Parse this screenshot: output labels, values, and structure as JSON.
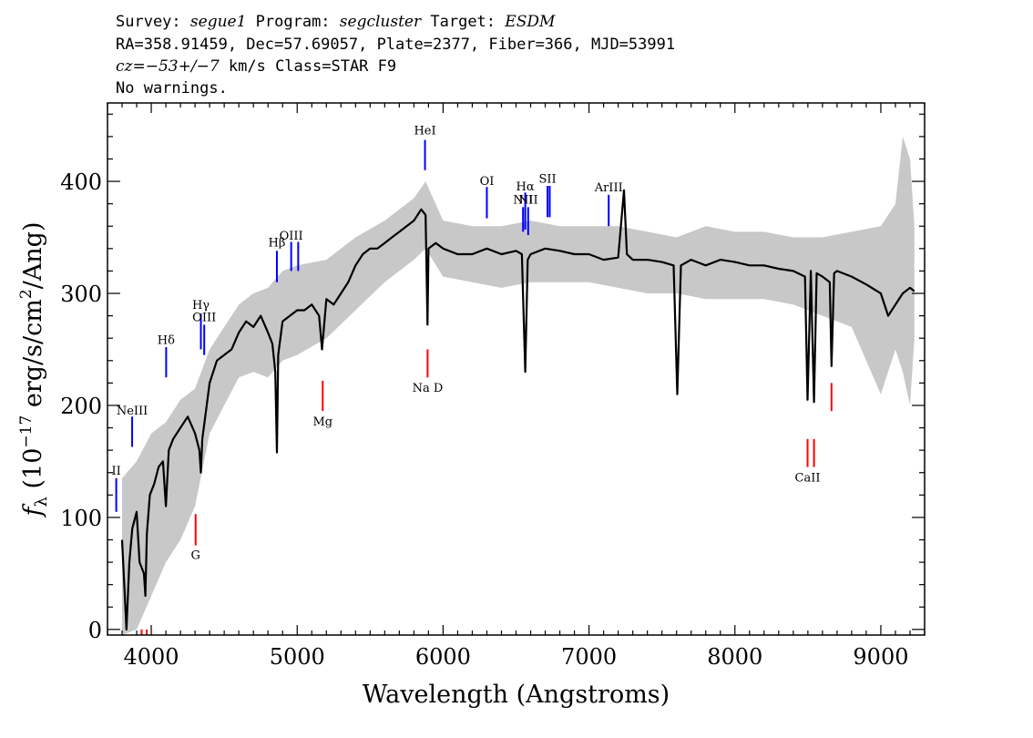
{
  "header": {
    "line1": {
      "survey_label": "Survey:",
      "survey": "segue1",
      "program_label": "Program:",
      "program": "segcluster",
      "target_label": "Target:",
      "target": "ESDM"
    },
    "line2": "RA=358.91459, Dec=57.69057, Plate=2377, Fiber=366, MJD=53991",
    "line3": {
      "cz_label": "cz=",
      "cz_value": "−53+/−7",
      "rest": " km/s Class=STAR F9"
    },
    "line4": "No warnings."
  },
  "colors": {
    "flux": "#000000",
    "error": "#c8c8c8",
    "emission": "#0000ff",
    "absorption": "#ff0000",
    "axes": "#000000"
  },
  "chart_data": {
    "type": "line",
    "title": "",
    "xlabel": "Wavelength (Angstroms)",
    "ylabel": "fλ (10⁻¹⁷ erg/s/cm²/Ang)",
    "ylabel_parts": {
      "f": "f",
      "sub": "λ",
      "open": " (10",
      "exp1": "−17",
      "mid": " erg/s/cm",
      "exp2": "2",
      "close": "/Ang)"
    },
    "xlim": [
      3700,
      9300
    ],
    "ylim": [
      -5,
      470
    ],
    "x_ticks": [
      4000,
      5000,
      6000,
      7000,
      8000,
      9000
    ],
    "x_tick_labels": [
      "4000",
      "5000",
      "6000",
      "7000",
      "8000",
      "9000"
    ],
    "y_ticks": [
      0,
      100,
      200,
      300,
      400
    ],
    "y_tick_labels": [
      "0",
      "100",
      "200",
      "300",
      "400"
    ],
    "grid": false,
    "series": [
      {
        "name": "flux",
        "x": [
          3800,
          3830,
          3850,
          3870,
          3900,
          3920,
          3950,
          3960,
          3970,
          3990,
          4020,
          4050,
          4080,
          4100,
          4120,
          4150,
          4200,
          4250,
          4300,
          4330,
          4340,
          4350,
          4400,
          4450,
          4500,
          4550,
          4600,
          4650,
          4700,
          4750,
          4800,
          4830,
          4850,
          4861,
          4870,
          4900,
          4950,
          5000,
          5050,
          5100,
          5150,
          5170,
          5200,
          5250,
          5300,
          5350,
          5400,
          5450,
          5500,
          5550,
          5600,
          5650,
          5700,
          5750,
          5800,
          5850,
          5880,
          5893,
          5900,
          5950,
          6000,
          6100,
          6200,
          6300,
          6400,
          6500,
          6540,
          6563,
          6580,
          6600,
          6700,
          6800,
          6900,
          7000,
          7100,
          7200,
          7240,
          7260,
          7300,
          7400,
          7500,
          7580,
          7605,
          7630,
          7700,
          7800,
          7900,
          8000,
          8100,
          8200,
          8300,
          8400,
          8480,
          8498,
          8520,
          8542,
          8560,
          8600,
          8650,
          8662,
          8680,
          8700,
          8800,
          8900,
          9000,
          9050,
          9100,
          9150,
          9200,
          9230
        ],
        "values": [
          80,
          0,
          60,
          90,
          105,
          60,
          50,
          30,
          85,
          120,
          130,
          145,
          150,
          110,
          160,
          170,
          180,
          190,
          175,
          160,
          140,
          170,
          220,
          240,
          245,
          250,
          265,
          275,
          270,
          280,
          265,
          255,
          230,
          158,
          245,
          275,
          280,
          285,
          285,
          290,
          280,
          250,
          295,
          290,
          300,
          310,
          325,
          335,
          340,
          340,
          345,
          350,
          355,
          360,
          365,
          375,
          370,
          272,
          340,
          345,
          340,
          335,
          335,
          340,
          335,
          338,
          335,
          230,
          330,
          335,
          340,
          338,
          335,
          335,
          330,
          332,
          392,
          335,
          330,
          330,
          328,
          325,
          210,
          325,
          330,
          325,
          330,
          328,
          325,
          325,
          322,
          320,
          315,
          205,
          320,
          203,
          318,
          315,
          310,
          235,
          318,
          320,
          315,
          308,
          300,
          280,
          290,
          300,
          305,
          302
        ]
      },
      {
        "name": "error-upper",
        "x": [
          3800,
          3900,
          4000,
          4100,
          4200,
          4300,
          4400,
          4500,
          4600,
          4700,
          4800,
          4900,
          5000,
          5200,
          5400,
          5600,
          5800,
          5880,
          6000,
          6200,
          6400,
          6600,
          6800,
          7000,
          7200,
          7400,
          7600,
          7800,
          8000,
          8200,
          8400,
          8600,
          8800,
          9000,
          9100,
          9150,
          9200,
          9230
        ],
        "values": [
          135,
          150,
          175,
          185,
          205,
          215,
          250,
          270,
          290,
          300,
          305,
          320,
          325,
          330,
          350,
          365,
          385,
          400,
          365,
          360,
          360,
          365,
          360,
          360,
          360,
          355,
          350,
          360,
          355,
          355,
          350,
          350,
          355,
          360,
          380,
          440,
          420,
          360
        ]
      },
      {
        "name": "error-lower",
        "x": [
          3800,
          3900,
          4000,
          4100,
          4200,
          4300,
          4400,
          4500,
          4600,
          4700,
          4800,
          4900,
          5000,
          5200,
          5400,
          5600,
          5800,
          5880,
          6000,
          6200,
          6400,
          6600,
          6800,
          7000,
          7200,
          7400,
          7600,
          7800,
          8000,
          8200,
          8400,
          8600,
          8800,
          9000,
          9100,
          9150,
          9200,
          9230
        ],
        "values": [
          -5,
          0,
          30,
          60,
          80,
          110,
          175,
          200,
          225,
          230,
          225,
          240,
          245,
          260,
          285,
          310,
          330,
          340,
          315,
          310,
          305,
          310,
          310,
          310,
          305,
          300,
          300,
          295,
          295,
          295,
          290,
          280,
          270,
          210,
          250,
          230,
          200,
          260
        ]
      }
    ],
    "emission_lines": [
      {
        "name": "HeII",
        "display": "II",
        "x": 3760,
        "y_bottom": 105,
        "y_top": 135,
        "label_y": 138
      },
      {
        "name": "NeIII",
        "display": "NeIII",
        "x": 3869,
        "y_bottom": 163,
        "y_top": 190,
        "label_y": 192
      },
      {
        "name": "Hδ",
        "display": "Hδ",
        "x": 4102,
        "y_bottom": 225,
        "y_top": 252,
        "label_y": 255
      },
      {
        "name": "Hγ",
        "display": "Hγ",
        "x": 4340,
        "y_bottom": 250,
        "y_top": 282,
        "label_y": 286
      },
      {
        "name": "OIII",
        "display": "OIII",
        "x": 4363,
        "y_bottom": 245,
        "y_top": 272,
        "label_y": 275
      },
      {
        "name": "Hβ",
        "display": "Hβ",
        "x": 4861,
        "y_bottom": 310,
        "y_top": 338,
        "label_y": 342
      },
      {
        "name": "OIII",
        "display": "OIII",
        "x": 4959,
        "y_bottom": 320,
        "y_top": 346,
        "label_y": 348
      },
      {
        "name": "OIII",
        "display": "",
        "x": 5007,
        "y_bottom": 320,
        "y_top": 346,
        "label_y": 348
      },
      {
        "name": "HeI",
        "display": "HeI",
        "x": 5876,
        "y_bottom": 410,
        "y_top": 437,
        "label_y": 442
      },
      {
        "name": "OI",
        "display": "OI",
        "x": 6300,
        "y_bottom": 367,
        "y_top": 395,
        "label_y": 397
      },
      {
        "name": "NII",
        "display": "NII",
        "x": 6548,
        "y_bottom": 355,
        "y_top": 377,
        "label_y": 380
      },
      {
        "name": "Hα",
        "display": "Hα",
        "x": 6563,
        "y_bottom": 357,
        "y_top": 390,
        "label_y": 392
      },
      {
        "name": "NII",
        "display": "NII",
        "x": 6583,
        "y_bottom": 352,
        "y_top": 377,
        "label_y": 380
      },
      {
        "name": "SII",
        "display": "SII",
        "x": 6716,
        "y_bottom": 368,
        "y_top": 396,
        "label_y": 399
      },
      {
        "name": "SII",
        "display": "",
        "x": 6731,
        "y_bottom": 368,
        "y_top": 396,
        "label_y": 399
      },
      {
        "name": "ArIII",
        "display": "ArIII",
        "x": 7135,
        "y_bottom": 360,
        "y_top": 388,
        "label_y": 391
      }
    ],
    "absorption_lines": [
      {
        "name": "K",
        "display": "",
        "x": 3934,
        "y_bottom": -5,
        "y_top": 0,
        "label_y": -20
      },
      {
        "name": "H",
        "display": "",
        "x": 3969,
        "y_bottom": -5,
        "y_top": 0,
        "label_y": -20
      },
      {
        "name": "G",
        "display": "G",
        "x": 4304,
        "y_bottom": 75,
        "y_top": 103,
        "label_y": 63
      },
      {
        "name": "Mg",
        "display": "Mg",
        "x": 5175,
        "y_bottom": 195,
        "y_top": 222,
        "label_y": 182
      },
      {
        "name": "Na D",
        "display": "Na D",
        "x": 5894,
        "y_bottom": 225,
        "y_top": 250,
        "label_y": 212
      },
      {
        "name": "CaII",
        "display": "CaII",
        "x": 8498,
        "y_bottom": 145,
        "y_top": 170,
        "label_y": 132
      },
      {
        "name": "CaII",
        "display": "",
        "x": 8542,
        "y_bottom": 145,
        "y_top": 170,
        "label_y": 132
      },
      {
        "name": "CaII",
        "display": "",
        "x": 8662,
        "y_bottom": 195,
        "y_top": 220,
        "label_y": 182
      }
    ]
  }
}
